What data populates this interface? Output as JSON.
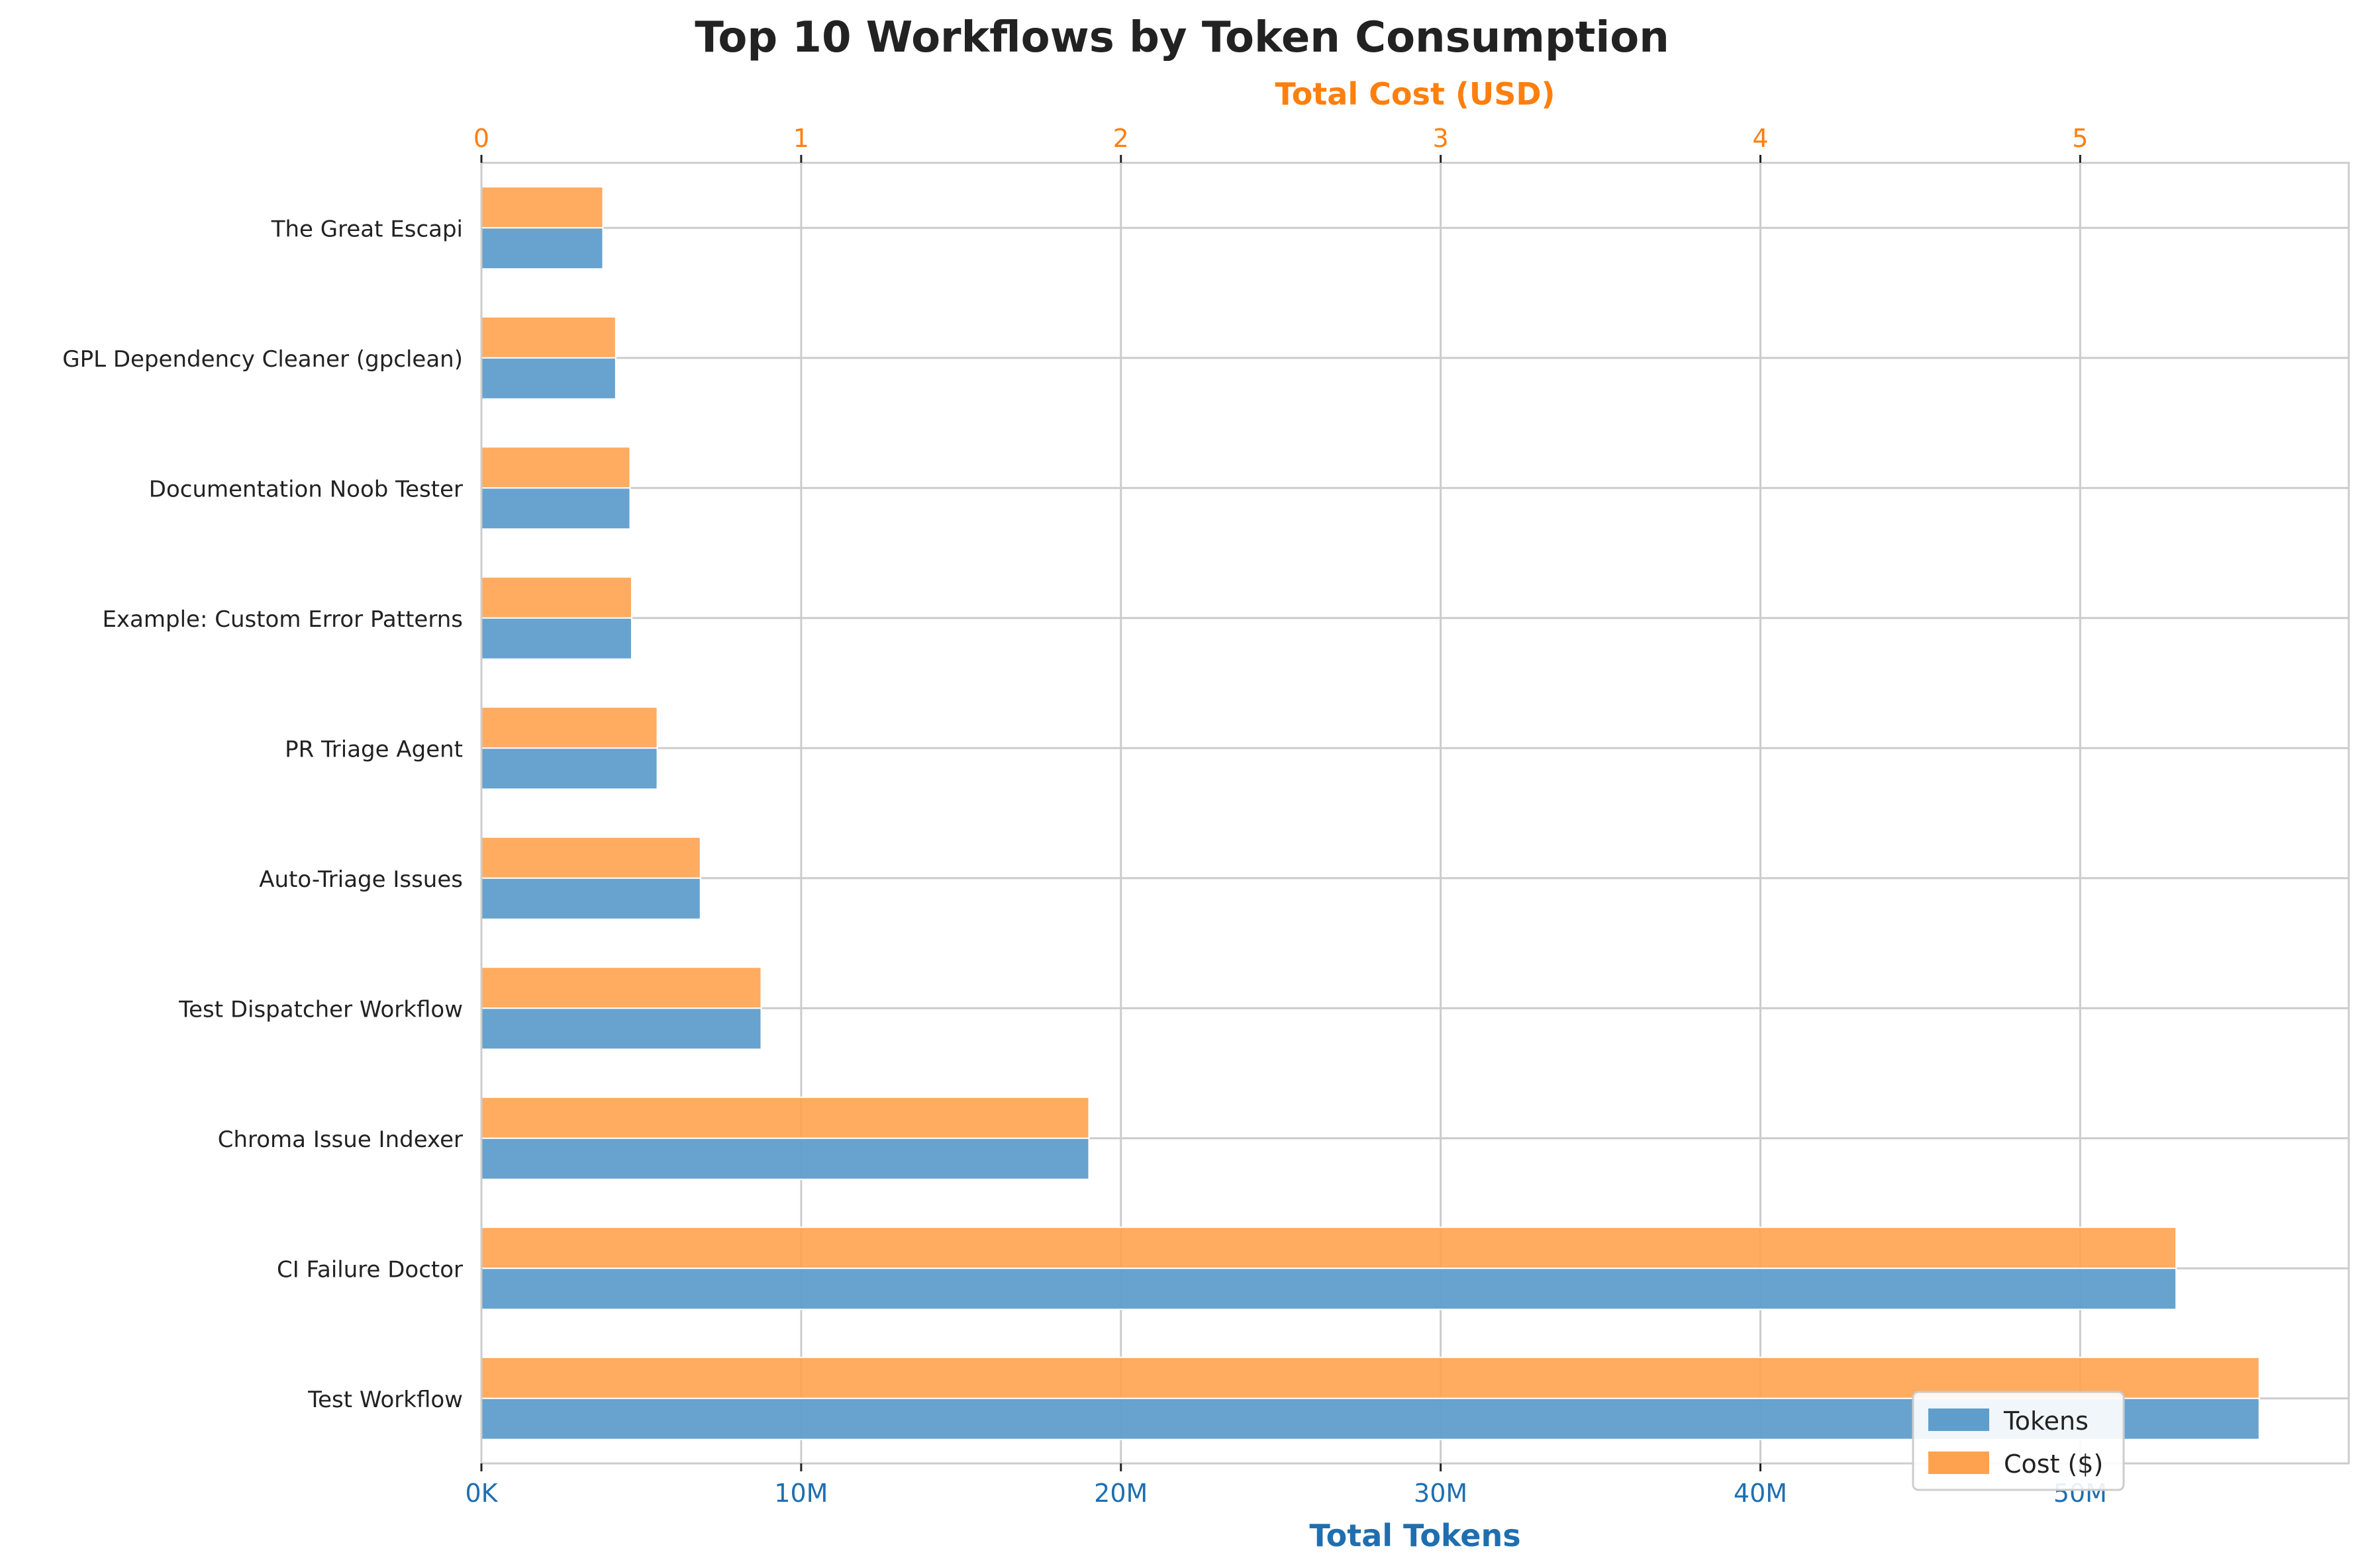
{
  "colors": {
    "tokens": "#5f9ecb",
    "cost": "#ffa24f",
    "tokens_axis": "#1f6fb0",
    "cost_axis": "#ff7f0e",
    "grid": "#cccccc",
    "text": "#222222"
  },
  "chart_data": {
    "type": "bar",
    "orientation": "horizontal",
    "title": "Top 10 Workflows by Token Consumption",
    "xlabel": "Total Tokens",
    "x2label": "Total Cost (USD)",
    "categories": [
      "The Great Escapi",
      "GPL Dependency Cleaner (gpclean)",
      "Documentation Noob Tester",
      "Example: Custom Error Patterns",
      "PR Triage Agent",
      "Auto-Triage Issues",
      "Test Dispatcher Workflow",
      "Chroma Issue Indexer",
      "CI Failure Doctor",
      "Test Workflow"
    ],
    "series": [
      {
        "name": "Tokens",
        "axis": "bottom",
        "values": [
          3800000,
          4200000,
          4650000,
          4700000,
          5500000,
          6850000,
          8750000,
          19000000,
          53000000,
          55600000
        ]
      },
      {
        "name": "Cost ($)",
        "axis": "top",
        "values": [
          0.38,
          0.42,
          0.465,
          0.47,
          0.55,
          0.685,
          0.875,
          1.9,
          5.3,
          5.56
        ]
      }
    ],
    "xlim_tokens": [
      0,
      58400000
    ],
    "xticks_tokens": [
      0,
      10000000,
      20000000,
      30000000,
      40000000,
      50000000
    ],
    "xtick_labels_tokens": [
      "0K",
      "10M",
      "20M",
      "30M",
      "40M",
      "50M"
    ],
    "xlim_cost": [
      0,
      5.84
    ],
    "xticks_cost": [
      0,
      1,
      2,
      3,
      4,
      5
    ],
    "xtick_labels_cost": [
      "0",
      "1",
      "2",
      "3",
      "4",
      "5"
    ],
    "grid": true,
    "legend": {
      "position": "bottom-right",
      "entries": [
        "Tokens",
        "Cost ($)"
      ]
    }
  }
}
